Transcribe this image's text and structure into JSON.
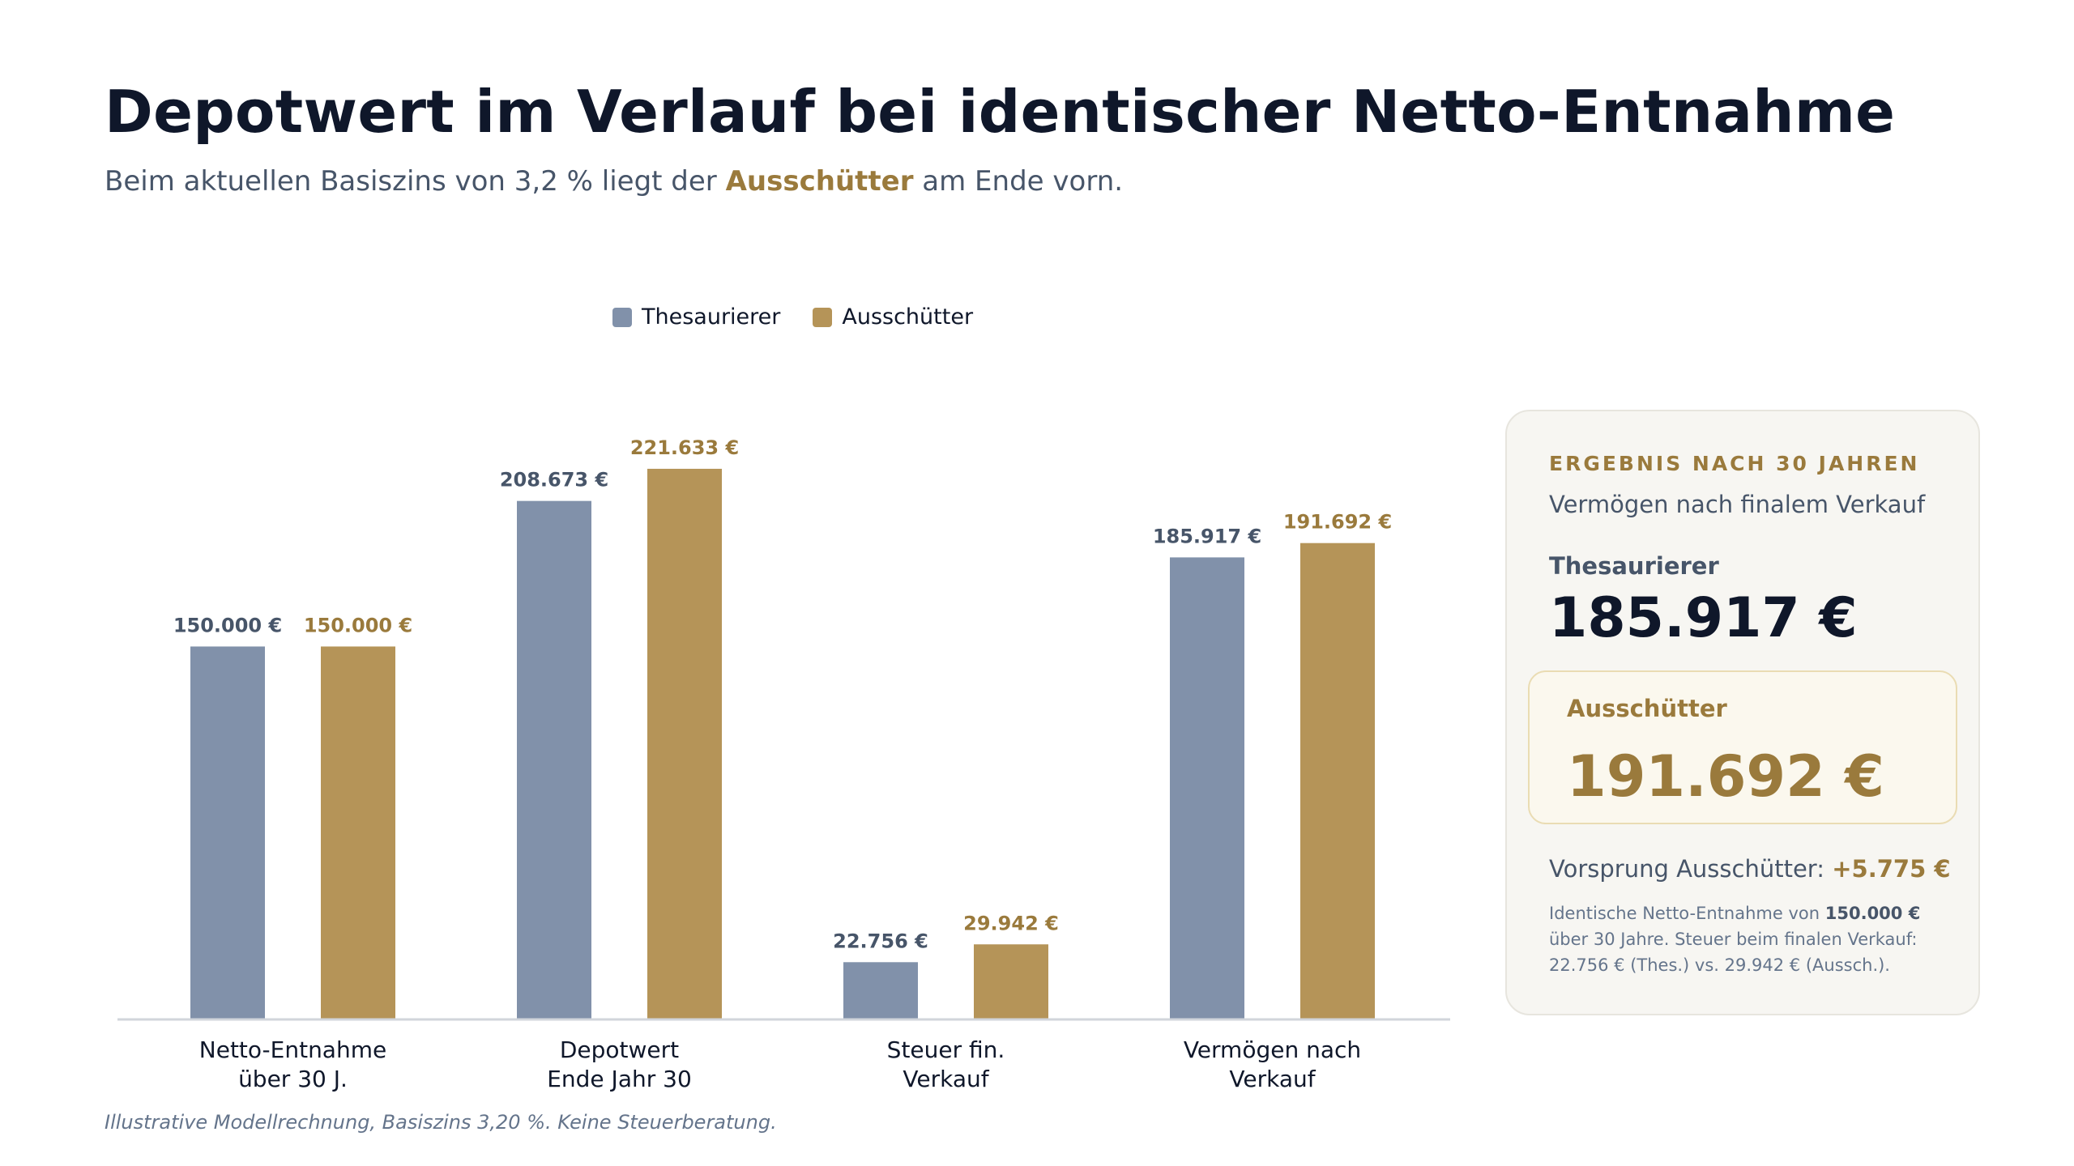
{
  "title": "Depotwert im Verlauf bei identischer Netto-Entnahme",
  "subtitle": {
    "before": "Beim aktuellen Basiszins von 3,2 % liegt der ",
    "highlight": "Ausschütter",
    "after": " am Ende vorn."
  },
  "colors": {
    "thesaurierer": "#8191aa",
    "ausschuetter": "#b59458",
    "thes_label": "#475569",
    "aus_label": "#9a7a3c",
    "axis": "#d1d5db"
  },
  "chart_data": {
    "type": "bar",
    "categories": [
      [
        "Netto-Entnahme",
        "über 30 J."
      ],
      [
        "Depotwert",
        "Ende Jahr 30"
      ],
      [
        "Steuer fin.",
        "Verkauf"
      ],
      [
        "Vermögen nach",
        "Verkauf"
      ]
    ],
    "series": [
      {
        "name": "Thesaurierer",
        "values": [
          150000,
          208673,
          22756,
          185917
        ],
        "labels": [
          "150.000 €",
          "208.673 €",
          "22.756 €",
          "185.917 €"
        ]
      },
      {
        "name": "Ausschütter",
        "values": [
          150000,
          221633,
          29942,
          191692
        ],
        "labels": [
          "150.000 €",
          "221.633 €",
          "29.942 €",
          "191.692 €"
        ]
      }
    ],
    "ylim": [
      0,
      235000
    ],
    "legend": "top-center",
    "grid": false,
    "xlabel": "",
    "ylabel": ""
  },
  "panel": {
    "eyebrow": "ERGEBNIS NACH 30 JAHREN",
    "caption": "Vermögen nach finalem Verkauf",
    "thes_label": "Thesaurierer",
    "thes_value": "185.917 €",
    "aus_label": "Ausschütter",
    "aus_value": "191.692 €",
    "lead_text": "Vorsprung Ausschütter: ",
    "lead_value": "+5.775 €",
    "note_before": "Identische Netto-Entnahme von ",
    "note_bold": "150.000 €",
    "note_after": " über 30 Jahre. Steuer beim finalen Verkauf: 22.756 € (Thes.) vs. 29.942 € (Aussch.)."
  },
  "footnote": "Illustrative Modellrechnung, Basiszins 3,20 %. Keine Steuerberatung."
}
